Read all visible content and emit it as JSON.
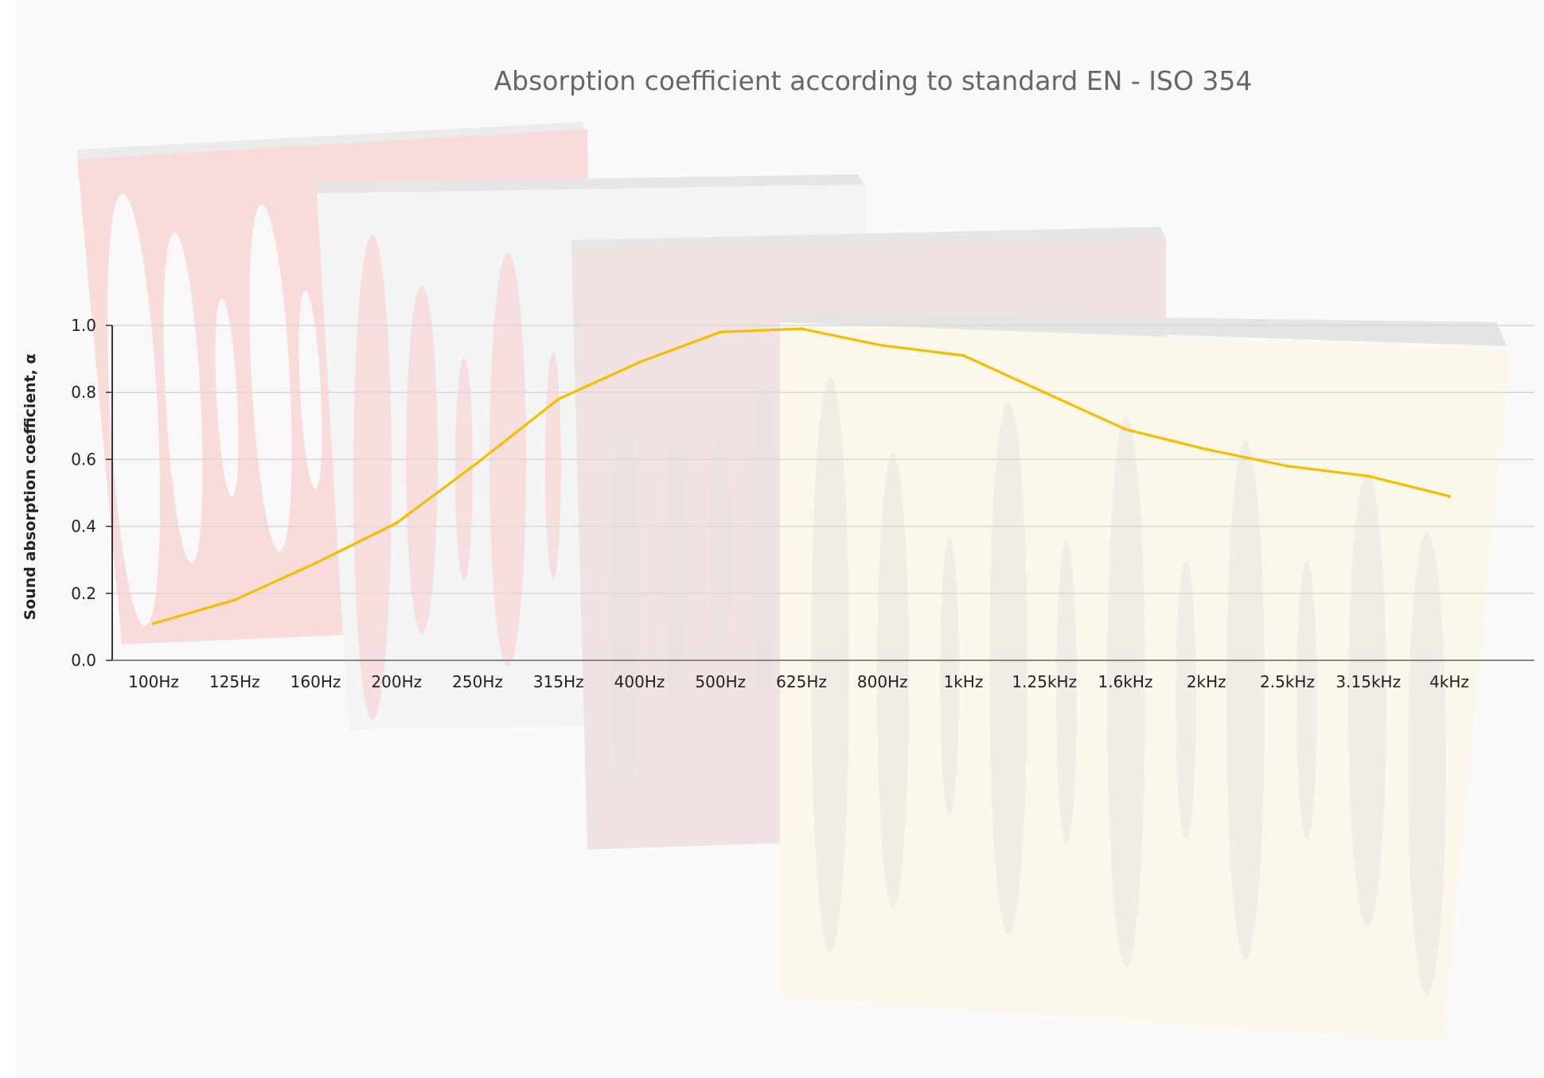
{
  "chart_data": {
    "type": "line",
    "title": "Absorption coefficient according to standard EN - ISO 354",
    "xlabel": "",
    "ylabel": "Sound absorption coefficient, α",
    "categories": [
      "100Hz",
      "125Hz",
      "160Hz",
      "200Hz",
      "250Hz",
      "315Hz",
      "400Hz",
      "500Hz",
      "625Hz",
      "800Hz",
      "1kHz",
      "1.25kHz",
      "1.6kHz",
      "2kHz",
      "2.5kHz",
      "3.15kHz",
      "4kHz"
    ],
    "series": [
      {
        "values": [
          0.11,
          0.18,
          0.29,
          0.41,
          0.59,
          0.78,
          0.89,
          0.98,
          0.99,
          0.94,
          0.91,
          0.8,
          0.69,
          0.63,
          0.58,
          0.55,
          0.49
        ],
        "color": "#f5bd00"
      }
    ],
    "ylim": [
      0,
      1.0
    ],
    "yticks": [
      "0.0",
      "0.2",
      "0.4",
      "0.6",
      "0.8",
      "1.0"
    ],
    "grid": true,
    "legend": "none"
  },
  "colors": {
    "background": "#f9f9f9",
    "gridline": "#d8d8d8",
    "axis": "#333333",
    "line": "#f5bd00",
    "panel_red": "#f8dcdc",
    "panel_white": "#f4f4f4",
    "panel_brown": "#efe2e0",
    "panel_cream": "#fbf7ea"
  }
}
